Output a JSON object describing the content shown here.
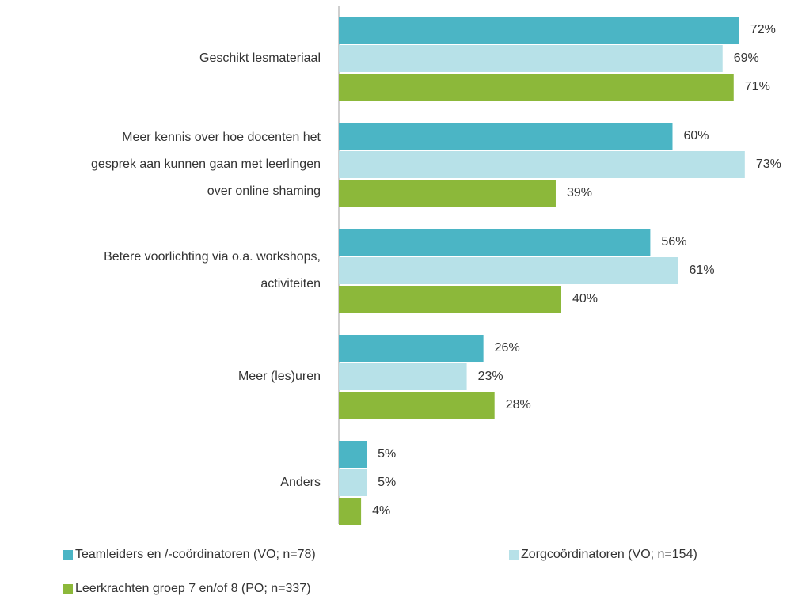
{
  "chart_data": {
    "type": "bar",
    "orientation": "horizontal",
    "categories": [
      "Geschikt lesmateriaal",
      "Meer kennis over hoe docenten het\ngesprek aan kunnen gaan met leerlingen\nover online shaming",
      "Betere voorlichting via o.a. workshops,\nactiviteiten",
      "Meer (les)uren",
      "Anders"
    ],
    "series": [
      {
        "name": "Teamleiders en /-coördinatoren (VO; n=78)",
        "color": "#4bb5c5",
        "values": [
          72,
          60,
          56,
          26,
          5
        ],
        "value_labels": [
          "72%",
          "60%",
          "56%",
          "26%",
          "5%"
        ]
      },
      {
        "name": "Zorgcoördinatoren (VO; n=154)",
        "color": "#b7e1e8",
        "values": [
          69,
          73,
          61,
          23,
          5
        ],
        "value_labels": [
          "69%",
          "73%",
          "61%",
          "23%",
          "5%"
        ]
      },
      {
        "name": "Leerkrachten groep 7 en/of 8 (PO; n=337)",
        "color": "#8cb83a",
        "values": [
          71,
          39,
          40,
          28,
          4
        ],
        "value_labels": [
          "71%",
          "39%",
          "40%",
          "28%",
          "4%"
        ]
      }
    ],
    "xlim": [
      0,
      80
    ],
    "legend": "bottom"
  }
}
